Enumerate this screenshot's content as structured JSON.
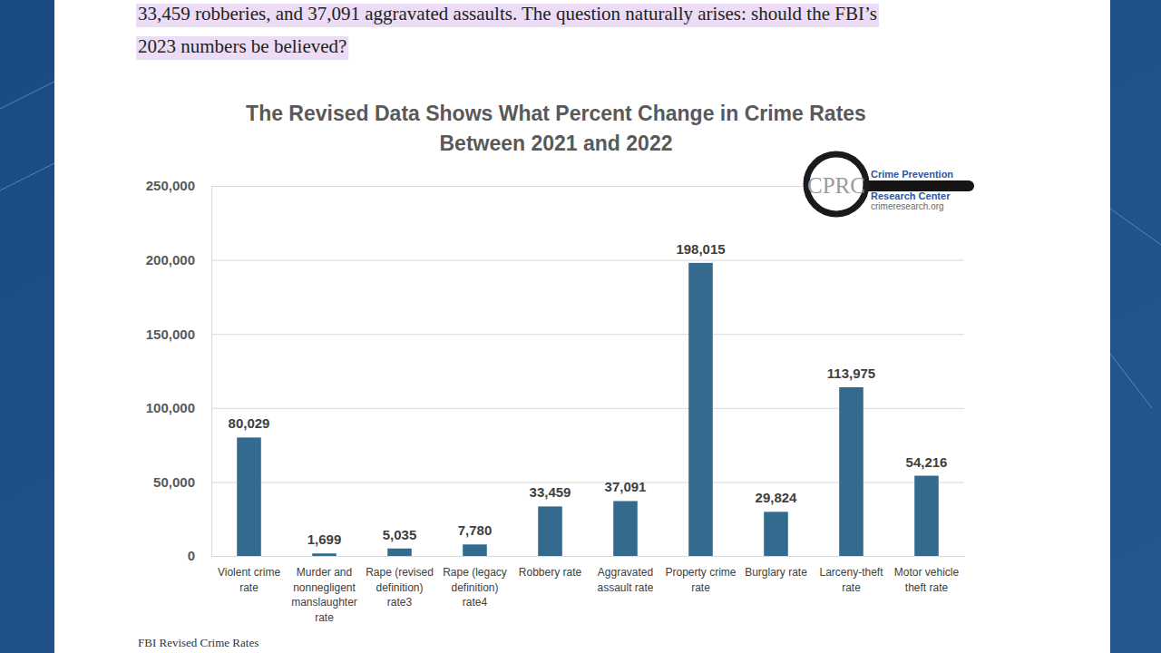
{
  "paragraph_lines": [
    "33,459 robberies, and 37,091 aggravated assaults. The question naturally arises: should the FBI’s",
    "2023 numbers be believed?"
  ],
  "caption": "FBI Revised Crime Rates",
  "logo": {
    "initials": "CPRC",
    "lines": [
      "Crime Prevention",
      "Research Center"
    ],
    "url": "crimeresearch.org"
  },
  "chart_data": {
    "type": "bar",
    "title": "The Revised Data Shows What Percent Change in Crime Rates Between 2021 and 2022",
    "categories": [
      "Violent crime rate",
      "Murder and nonnegligent manslaughter rate",
      "Rape (revised definition) rate3",
      "Rape (legacy definition) rate4",
      "Robbery rate",
      "Aggravated assault rate",
      "Property crime rate",
      "Burglary rate",
      "Larceny-theft rate",
      "Motor vehicle theft rate"
    ],
    "values": [
      80029,
      1699,
      5035,
      7780,
      33459,
      37091,
      198015,
      29824,
      113975,
      54216
    ],
    "value_labels": [
      "80,029",
      "1,699",
      "5,035",
      "7,780",
      "33,459",
      "37,091",
      "198,015",
      "29,824",
      "113,975",
      "54,216"
    ],
    "color": "#336a8e",
    "ylim": [
      0,
      250000
    ],
    "yticks": [
      0,
      {
        "value": 50000,
        "label": "50,000"
      },
      {
        "value": 100000,
        "label": "100,000"
      },
      {
        "value": 150000,
        "label": "150,000"
      },
      {
        "value": 200000,
        "label": "200,000"
      },
      {
        "value": 250000,
        "label": "250,000"
      }
    ],
    "grid": true,
    "data_labels": true
  }
}
